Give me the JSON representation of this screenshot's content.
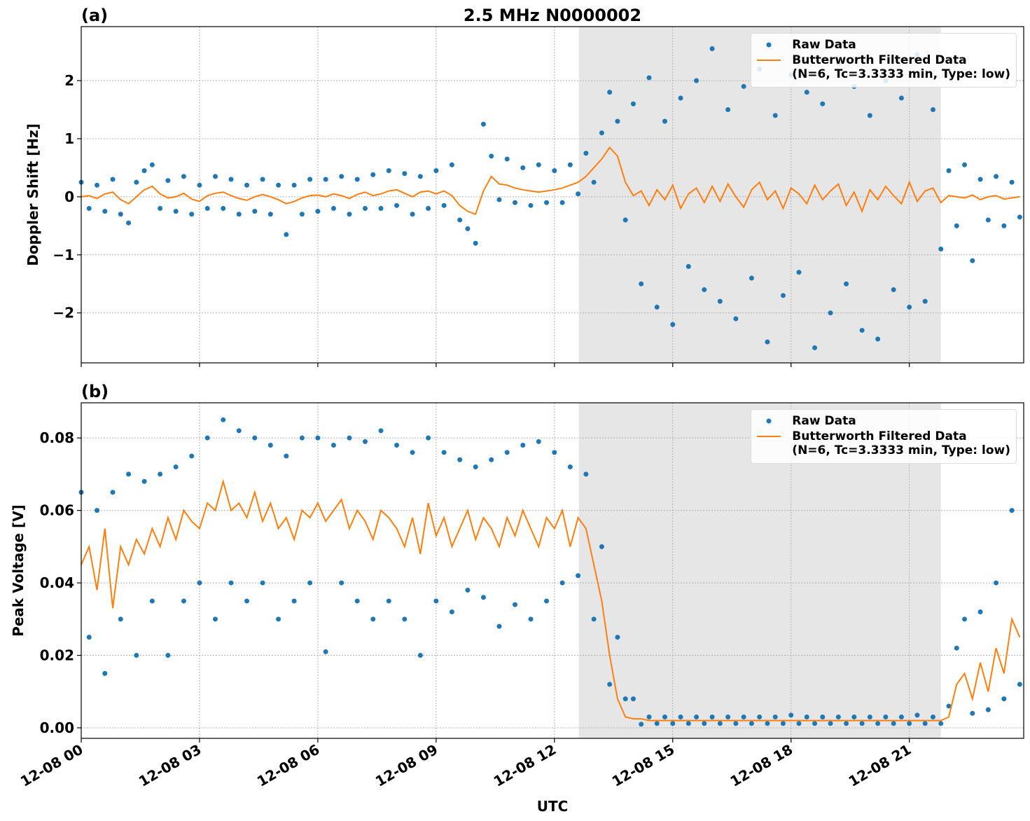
{
  "chart_data": [
    {
      "type": "scatter",
      "panel_label": "(a)",
      "title": "2.5 MHz N0000002",
      "ylabel": "Doppler Shift [Hz]",
      "xlim": [
        0,
        23.9
      ],
      "ylim": [
        -2.86,
        2.93
      ],
      "xticks": [
        0,
        3,
        6,
        9,
        12,
        15,
        18,
        21
      ],
      "yticks": [
        {
          "value": -2,
          "label": "−2"
        },
        {
          "value": -1,
          "label": "−1"
        },
        0,
        1,
        2
      ],
      "grid": true,
      "shaded_span": [
        12.62,
        21.8
      ],
      "legend": "upper right",
      "x": [
        0,
        0.2,
        0.4,
        0.6,
        0.8,
        1,
        1.2,
        1.4,
        1.6,
        1.8,
        2,
        2.2,
        2.4,
        2.6,
        2.8,
        3,
        3.2,
        3.4,
        3.6,
        3.8,
        4,
        4.2,
        4.4,
        4.6,
        4.8,
        5,
        5.2,
        5.4,
        5.6,
        5.8,
        6,
        6.2,
        6.4,
        6.6,
        6.8,
        7,
        7.2,
        7.4,
        7.6,
        7.8,
        8,
        8.2,
        8.4,
        8.6,
        8.8,
        9,
        9.2,
        9.4,
        9.6,
        9.8,
        10,
        10.2,
        10.4,
        10.6,
        10.8,
        11,
        11.2,
        11.4,
        11.6,
        11.8,
        12,
        12.2,
        12.4,
        12.6,
        12.8,
        13,
        13.2,
        13.4,
        13.6,
        13.8,
        14,
        14.2,
        14.4,
        14.6,
        14.8,
        15,
        15.2,
        15.4,
        15.6,
        15.8,
        16,
        16.2,
        16.4,
        16.6,
        16.8,
        17,
        17.2,
        17.4,
        17.6,
        17.8,
        18,
        18.2,
        18.4,
        18.6,
        18.8,
        19,
        19.2,
        19.4,
        19.6,
        19.8,
        20,
        20.2,
        20.4,
        20.6,
        20.8,
        21,
        21.2,
        21.4,
        21.6,
        21.8,
        22,
        22.2,
        22.4,
        22.6,
        22.8,
        23,
        23.2,
        23.4,
        23.6,
        23.8
      ],
      "series": [
        {
          "name": "Raw Data",
          "kind": "scatter",
          "color": "#1f77b4",
          "values": [
            0.25,
            -0.2,
            0.2,
            -0.25,
            0.3,
            -0.3,
            -0.45,
            0.25,
            0.45,
            0.55,
            -0.2,
            0.28,
            -0.25,
            0.35,
            -0.3,
            0.2,
            -0.2,
            0.35,
            -0.2,
            0.3,
            -0.3,
            0.2,
            -0.25,
            0.3,
            -0.3,
            0.2,
            -0.65,
            0.2,
            -0.3,
            0.3,
            -0.25,
            0.3,
            -0.2,
            0.35,
            -0.3,
            0.3,
            -0.2,
            0.38,
            -0.2,
            0.45,
            -0.15,
            0.4,
            -0.3,
            0.35,
            -0.2,
            0.45,
            -0.15,
            0.55,
            -0.4,
            -0.55,
            -0.8,
            1.25,
            0.7,
            -0.05,
            0.65,
            -0.1,
            0.5,
            -0.15,
            0.55,
            -0.1,
            0.45,
            -0.1,
            0.55,
            0.05,
            0.75,
            0.25,
            1.1,
            1.8,
            1.3,
            -0.4,
            1.6,
            -1.5,
            2.05,
            -1.9,
            1.3,
            -2.2,
            1.7,
            -1.2,
            2.0,
            -1.6,
            2.55,
            -1.8,
            1.5,
            -2.1,
            1.9,
            -1.4,
            2.2,
            -2.5,
            1.4,
            -1.7,
            2.1,
            -1.3,
            1.8,
            -2.6,
            1.6,
            -2.0,
            2.3,
            -1.5,
            1.9,
            -2.3,
            1.4,
            -2.45,
            2.0,
            -1.6,
            1.7,
            -1.9,
            2.45,
            -1.8,
            1.5,
            -0.9,
            0.45,
            -0.5,
            0.55,
            -1.1,
            0.3,
            -0.4,
            0.35,
            -0.5,
            0.25,
            -0.35
          ]
        },
        {
          "name": "Butterworth Filtered Data\n(N=6, Tc=3.3333 min, Type: low)",
          "kind": "line",
          "color": "#ff7f0e",
          "values": [
            0,
            0.02,
            -0.03,
            0.05,
            0.08,
            -0.05,
            -0.12,
            0,
            0.12,
            0.18,
            0.05,
            -0.02,
            0,
            0.06,
            -0.04,
            -0.08,
            0.02,
            0.06,
            0.08,
            0.02,
            -0.03,
            -0.06,
            0,
            0.04,
            0,
            -0.05,
            -0.12,
            -0.08,
            -0.02,
            0.02,
            0.03,
            0,
            0.05,
            0.02,
            -0.03,
            0.04,
            0.08,
            0.02,
            0.05,
            0.1,
            0.12,
            0.06,
            0,
            0.08,
            0.1,
            0.05,
            0.1,
            0.02,
            -0.15,
            -0.25,
            -0.3,
            0.1,
            0.35,
            0.22,
            0.2,
            0.15,
            0.12,
            0.1,
            0.08,
            0.1,
            0.12,
            0.15,
            0.2,
            0.25,
            0.35,
            0.5,
            0.65,
            0.85,
            0.7,
            0.25,
            0.02,
            0.1,
            -0.15,
            0.12,
            -0.05,
            0.2,
            -0.2,
            0.05,
            0.15,
            -0.1,
            0.18,
            -0.08,
            0.22,
            0,
            -0.18,
            0.12,
            0.25,
            -0.05,
            0.1,
            -0.2,
            0.15,
            0.05,
            -0.12,
            0.2,
            -0.05,
            0.1,
            0.22,
            -0.15,
            0.08,
            -0.25,
            0.12,
            -0.05,
            0.18,
            0.02,
            -0.12,
            0.25,
            -0.08,
            0.1,
            0.15,
            -0.1,
            0.02,
            0,
            -0.02,
            0.03,
            -0.05,
            0,
            0.02,
            -0.04,
            -0.02,
            0
          ]
        }
      ]
    },
    {
      "type": "scatter",
      "panel_label": "(b)",
      "ylabel": "Peak Voltage [V]",
      "xlabel": "UTC",
      "xlim": [
        0,
        23.9
      ],
      "ylim": [
        -0.0029,
        0.0897
      ],
      "xticks": [
        {
          "value": 0,
          "label": "12-08 00"
        },
        {
          "value": 3,
          "label": "12-08 03"
        },
        {
          "value": 6,
          "label": "12-08 06"
        },
        {
          "value": 9,
          "label": "12-08 09"
        },
        {
          "value": 12,
          "label": "12-08 12"
        },
        {
          "value": 15,
          "label": "12-08 15"
        },
        {
          "value": 18,
          "label": "12-08 18"
        },
        {
          "value": 21,
          "label": "12-08 21"
        }
      ],
      "yticks": [
        {
          "value": 0,
          "label": "0.00"
        },
        0.02,
        0.04,
        0.06,
        0.08
      ],
      "grid": true,
      "shaded_span": [
        12.62,
        21.8
      ],
      "legend": "upper right",
      "x": [
        0,
        0.2,
        0.4,
        0.6,
        0.8,
        1,
        1.2,
        1.4,
        1.6,
        1.8,
        2,
        2.2,
        2.4,
        2.6,
        2.8,
        3,
        3.2,
        3.4,
        3.6,
        3.8,
        4,
        4.2,
        4.4,
        4.6,
        4.8,
        5,
        5.2,
        5.4,
        5.6,
        5.8,
        6,
        6.2,
        6.4,
        6.6,
        6.8,
        7,
        7.2,
        7.4,
        7.6,
        7.8,
        8,
        8.2,
        8.4,
        8.6,
        8.8,
        9,
        9.2,
        9.4,
        9.6,
        9.8,
        10,
        10.2,
        10.4,
        10.6,
        10.8,
        11,
        11.2,
        11.4,
        11.6,
        11.8,
        12,
        12.2,
        12.4,
        12.6,
        12.8,
        13,
        13.2,
        13.4,
        13.6,
        13.8,
        14,
        14.2,
        14.4,
        14.6,
        14.8,
        15,
        15.2,
        15.4,
        15.6,
        15.8,
        16,
        16.2,
        16.4,
        16.6,
        16.8,
        17,
        17.2,
        17.4,
        17.6,
        17.8,
        18,
        18.2,
        18.4,
        18.6,
        18.8,
        19,
        19.2,
        19.4,
        19.6,
        19.8,
        20,
        20.2,
        20.4,
        20.6,
        20.8,
        21,
        21.2,
        21.4,
        21.6,
        21.8,
        22,
        22.2,
        22.4,
        22.6,
        22.8,
        23,
        23.2,
        23.4,
        23.6,
        23.8
      ],
      "series": [
        {
          "name": "Raw Data",
          "kind": "scatter",
          "color": "#1f77b4",
          "values": [
            0.065,
            0.025,
            0.06,
            0.015,
            0.065,
            0.03,
            0.07,
            0.02,
            0.068,
            0.035,
            0.07,
            0.02,
            0.072,
            0.035,
            0.075,
            0.04,
            0.08,
            0.03,
            0.085,
            0.04,
            0.082,
            0.035,
            0.08,
            0.04,
            0.078,
            0.03,
            0.075,
            0.035,
            0.08,
            0.04,
            0.08,
            0.021,
            0.078,
            0.04,
            0.08,
            0.035,
            0.079,
            0.03,
            0.082,
            0.035,
            0.078,
            0.03,
            0.076,
            0.02,
            0.08,
            0.035,
            0.076,
            0.032,
            0.074,
            0.038,
            0.072,
            0.036,
            0.074,
            0.028,
            0.076,
            0.034,
            0.078,
            0.03,
            0.079,
            0.035,
            0.076,
            0.04,
            0.072,
            0.042,
            0.07,
            0.03,
            0.05,
            0.012,
            0.025,
            0.008,
            0.008,
            0.001,
            0.003,
            0.0012,
            0.003,
            0.0012,
            0.003,
            0.0012,
            0.003,
            0.0012,
            0.003,
            0.0012,
            0.003,
            0.0012,
            0.003,
            0.0012,
            0.003,
            0.0012,
            0.003,
            0.0012,
            0.0035,
            0.0012,
            0.003,
            0.0012,
            0.003,
            0.0012,
            0.003,
            0.0012,
            0.003,
            0.0012,
            0.003,
            0.0012,
            0.003,
            0.0012,
            0.003,
            0.0012,
            0.0035,
            0.0012,
            0.003,
            0.0012,
            0.006,
            0.022,
            0.03,
            0.004,
            0.032,
            0.005,
            0.04,
            0.008,
            0.06,
            0.012
          ]
        },
        {
          "name": "Butterworth Filtered Data\n(N=6, Tc=3.3333 min, Type: low)",
          "kind": "line",
          "color": "#ff7f0e",
          "values": [
            0.045,
            0.05,
            0.038,
            0.055,
            0.033,
            0.05,
            0.045,
            0.052,
            0.048,
            0.055,
            0.05,
            0.058,
            0.052,
            0.06,
            0.057,
            0.055,
            0.062,
            0.06,
            0.068,
            0.06,
            0.062,
            0.058,
            0.065,
            0.057,
            0.062,
            0.055,
            0.058,
            0.052,
            0.06,
            0.058,
            0.062,
            0.057,
            0.06,
            0.063,
            0.055,
            0.06,
            0.057,
            0.052,
            0.06,
            0.058,
            0.055,
            0.05,
            0.058,
            0.048,
            0.062,
            0.053,
            0.058,
            0.05,
            0.055,
            0.06,
            0.052,
            0.058,
            0.055,
            0.05,
            0.058,
            0.053,
            0.06,
            0.055,
            0.05,
            0.058,
            0.055,
            0.06,
            0.05,
            0.058,
            0.055,
            0.045,
            0.035,
            0.02,
            0.008,
            0.003,
            0.0025,
            0.0025,
            0.002,
            0.002,
            0.002,
            0.002,
            0.002,
            0.002,
            0.002,
            0.002,
            0.002,
            0.002,
            0.002,
            0.002,
            0.002,
            0.002,
            0.002,
            0.002,
            0.002,
            0.002,
            0.002,
            0.002,
            0.002,
            0.002,
            0.002,
            0.002,
            0.002,
            0.002,
            0.002,
            0.002,
            0.002,
            0.002,
            0.002,
            0.002,
            0.002,
            0.002,
            0.002,
            0.002,
            0.002,
            0.002,
            0.003,
            0.012,
            0.015,
            0.008,
            0.018,
            0.01,
            0.022,
            0.015,
            0.03,
            0.025
          ]
        }
      ]
    }
  ]
}
